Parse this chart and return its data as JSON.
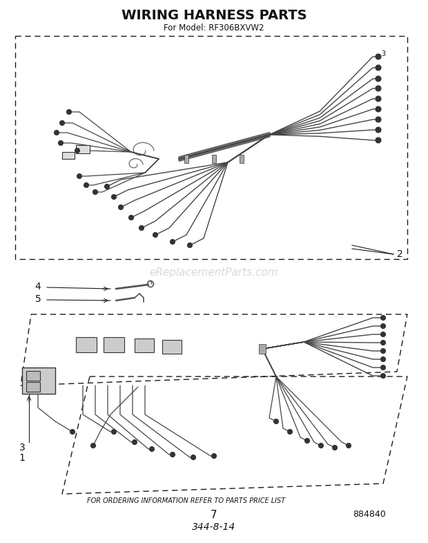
{
  "title": "WIRING HARNESS PARTS",
  "subtitle": "For Model: RF306BXVW2",
  "footer_text": "FOR ORDERING INFORMATION REFER TO PARTS PRICE LIST",
  "page_number": "7",
  "part_number": "884840",
  "date_code": "344-8-14",
  "bg_color": "#ffffff",
  "line_color": "#1a1a1a",
  "text_color": "#111111",
  "label_2": "2",
  "label_3": "3",
  "label_1": "1",
  "label_4": "4",
  "label_5": "5",
  "watermark": "eReplacementParts.com",
  "wire_color": "#444444",
  "bundle_color": "#333333"
}
